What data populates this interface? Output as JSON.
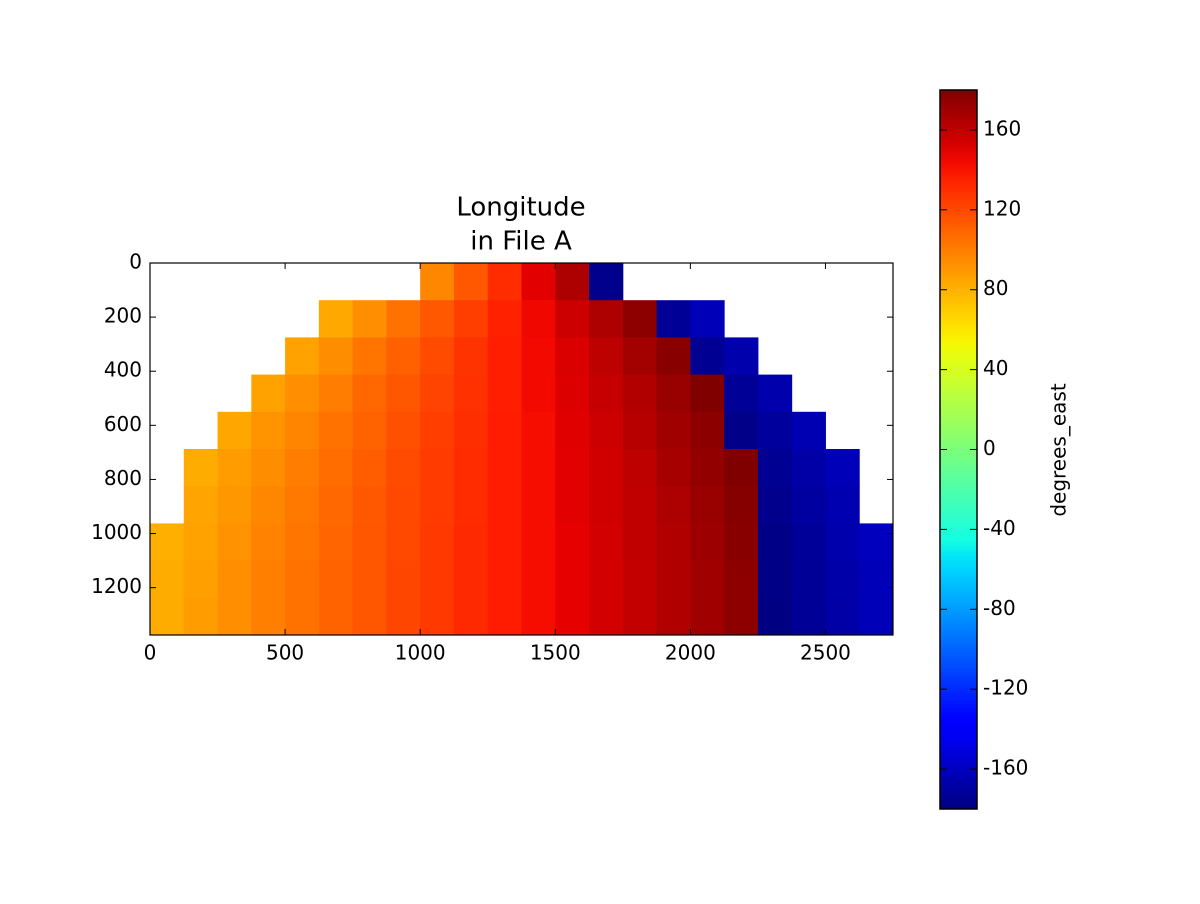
{
  "chart_data": {
    "type": "image",
    "title": [
      "Longitude",
      "in File A"
    ],
    "xlim": [
      0,
      2750
    ],
    "ylim": [
      1375,
      0
    ],
    "xticks": [
      0,
      500,
      1000,
      1500,
      2000,
      2500
    ],
    "yticks": [
      0,
      200,
      400,
      600,
      800,
      1000,
      1200
    ],
    "xbins": [
      0,
      125,
      250,
      375,
      500,
      625,
      750,
      875,
      1000,
      1125,
      1250,
      1375,
      1500,
      1625,
      1750,
      1875,
      2000,
      2125,
      2250,
      2375,
      2500,
      2625,
      2750
    ],
    "ybins": [
      0,
      137.5,
      275,
      412.5,
      550,
      687.5,
      825,
      962.5,
      1100,
      1237.5,
      1375
    ],
    "values": [
      [
        null,
        null,
        null,
        null,
        null,
        null,
        null,
        null,
        96,
        114,
        131,
        149,
        166,
        -176,
        null,
        null,
        null,
        null,
        null,
        null,
        null,
        null
      ],
      [
        null,
        null,
        null,
        null,
        null,
        83,
        93,
        104,
        114,
        124,
        135,
        145,
        156,
        166,
        176,
        -173,
        -163,
        null,
        null,
        null,
        null,
        null
      ],
      [
        null,
        null,
        null,
        null,
        86,
        94,
        103,
        111,
        119,
        128,
        136,
        144,
        152,
        161,
        169,
        177,
        -174,
        -166,
        null,
        null,
        null,
        null
      ],
      [
        null,
        null,
        null,
        86,
        93,
        100,
        108,
        115,
        122,
        129,
        136,
        144,
        151,
        158,
        165,
        172,
        180,
        -173,
        -166,
        null,
        null,
        null
      ],
      [
        null,
        null,
        84,
        91,
        97,
        104,
        110,
        117,
        124,
        130,
        137,
        143,
        150,
        156,
        163,
        170,
        176,
        -177,
        -171,
        -164,
        null,
        null
      ],
      [
        null,
        82,
        88,
        94,
        100,
        106,
        112,
        119,
        125,
        131,
        137,
        143,
        149,
        155,
        161,
        168,
        174,
        180,
        -174,
        -168,
        -162,
        null
      ],
      [
        null,
        85,
        90,
        96,
        102,
        108,
        114,
        120,
        125,
        131,
        137,
        143,
        149,
        155,
        160,
        166,
        172,
        178,
        -176,
        -170,
        -165,
        null
      ],
      [
        81,
        86,
        92,
        98,
        103,
        109,
        115,
        120,
        126,
        132,
        137,
        143,
        148,
        154,
        160,
        165,
        171,
        177,
        -178,
        -172,
        -166,
        -161
      ],
      [
        82,
        87,
        93,
        99,
        104,
        110,
        115,
        121,
        126,
        132,
        137,
        143,
        148,
        154,
        159,
        165,
        170,
        176,
        -178,
        -173,
        -167,
        -162
      ],
      [
        82,
        88,
        93,
        99,
        104,
        110,
        115,
        121,
        126,
        132,
        137,
        143,
        148,
        154,
        159,
        165,
        170,
        176,
        -179,
        -173,
        -168,
        -162
      ]
    ],
    "colormap": "jet",
    "clim": [
      -180,
      180
    ],
    "cticks": [
      -160,
      -120,
      -80,
      -40,
      0,
      40,
      80,
      120,
      160
    ],
    "colorbar_label": "degrees_east"
  }
}
